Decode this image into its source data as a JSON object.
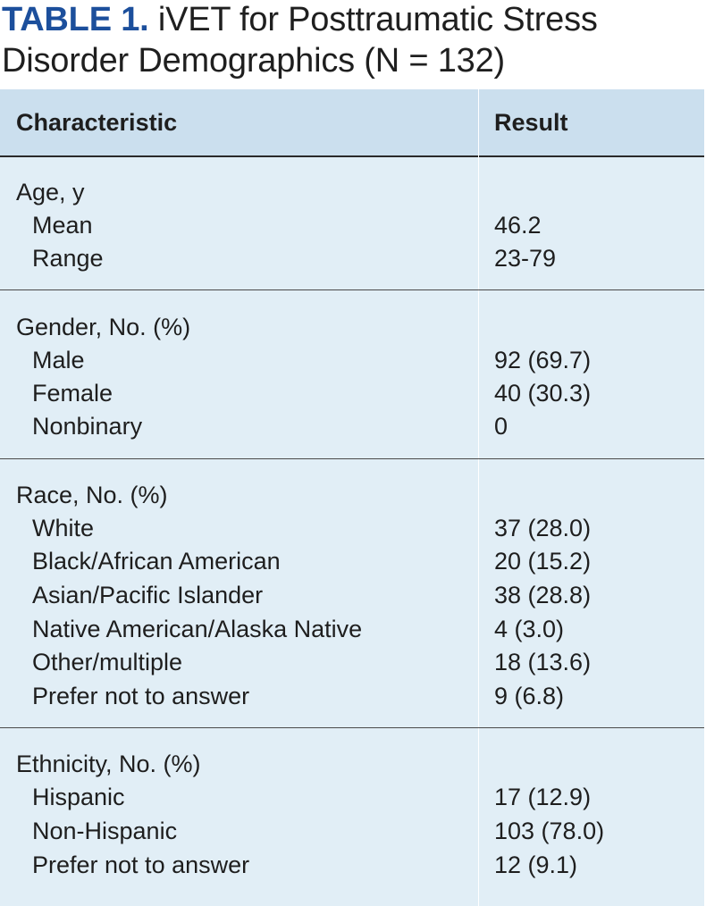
{
  "title": {
    "label": "TABLE 1.",
    "text_line1": " iVET for Posttraumatic Stress",
    "text_line2": "Disorder Demographics (N = 132)"
  },
  "table": {
    "headers": {
      "characteristic": "Characteristic",
      "result": "Result"
    },
    "sections": [
      {
        "heading": "Age, y",
        "rows": [
          {
            "label": "Mean",
            "value": "46.2"
          },
          {
            "label": "Range",
            "value": "23-79"
          }
        ]
      },
      {
        "heading": "Gender, No. (%)",
        "rows": [
          {
            "label": "Male",
            "value": "92 (69.7)"
          },
          {
            "label": "Female",
            "value": "40 (30.3)"
          },
          {
            "label": "Nonbinary",
            "value": "0"
          }
        ]
      },
      {
        "heading": "Race, No. (%)",
        "rows": [
          {
            "label": "White",
            "value": "37 (28.0)"
          },
          {
            "label": "Black/African American",
            "value": "20 (15.2)"
          },
          {
            "label": "Asian/Pacific Islander",
            "value": "38 (28.8)"
          },
          {
            "label": "Native American/Alaska Native",
            "value": "4 (3.0)"
          },
          {
            "label": "Other/multiple",
            "value": "18 (13.6)"
          },
          {
            "label": "Prefer not to answer",
            "value": "9 (6.8)"
          }
        ]
      },
      {
        "heading": "Ethnicity, No. (%)",
        "rows": [
          {
            "label": "Hispanic",
            "value": "17 (12.9)"
          },
          {
            "label": "Non-Hispanic",
            "value": "103 (78.0)"
          },
          {
            "label": "Prefer not to answer",
            "value": "12 (9.1)"
          }
        ]
      }
    ]
  },
  "colors": {
    "title_label": "#1c4f9c",
    "header_background": "#cbdfee",
    "body_background": "#e1eef6"
  }
}
